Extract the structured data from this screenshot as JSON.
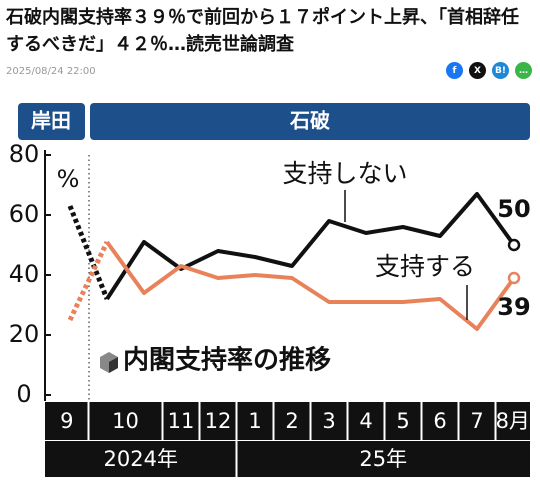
{
  "headline": "石破内閣支持率３９％で前回から１７ポイント上昇、「首相辞任するべきだ」４２％…読売世論調査",
  "date": "2025/08/24 22:00",
  "share": [
    "f",
    "X",
    "B!",
    "…"
  ],
  "chart_data": {
    "type": "line",
    "title": "内閣支持率の推移",
    "unit_label": "%",
    "eras": [
      "岸田",
      "石破"
    ],
    "year_labels": [
      "2024年",
      "25年"
    ],
    "categories": [
      "9",
      "10",
      null,
      "11",
      "12",
      "1",
      "2",
      "3",
      "4",
      "5",
      "6",
      "7",
      "8月"
    ],
    "series": [
      {
        "name": "支持しない",
        "color": "#111111",
        "values": [
          63,
          32,
          51,
          42,
          48,
          46,
          43,
          58,
          54,
          56,
          53,
          67,
          50
        ]
      },
      {
        "name": "支持する",
        "color": "#e8825a",
        "values": [
          25,
          51,
          34,
          43,
          39,
          40,
          39,
          31,
          31,
          31,
          32,
          22,
          39
        ]
      }
    ],
    "end_labels": [
      "50",
      "39"
    ],
    "ylim": [
      0,
      80
    ],
    "yticks": [
      0,
      20,
      40,
      60,
      80
    ],
    "grid": false
  }
}
